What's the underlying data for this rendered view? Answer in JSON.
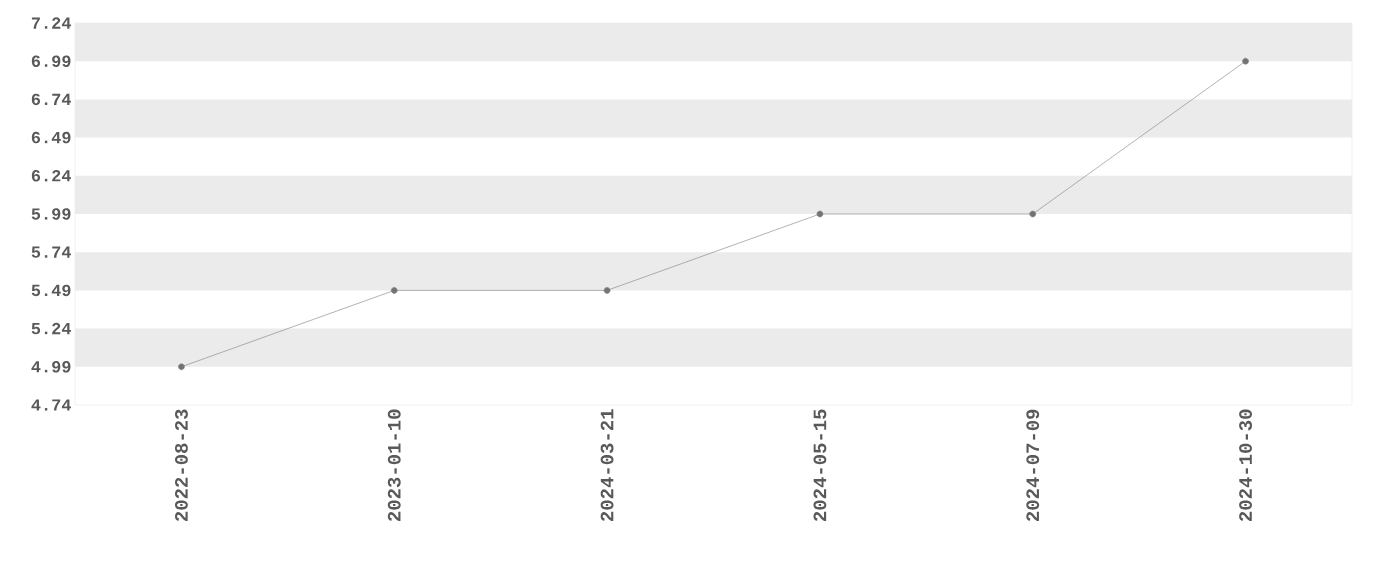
{
  "chart_data": {
    "type": "line",
    "categories": [
      "2022-08-23",
      "2023-01-10",
      "2024-03-21",
      "2024-05-15",
      "2024-07-09",
      "2024-10-30"
    ],
    "series": [
      {
        "color": "#808080",
        "values": [
          4.99,
          5.49,
          5.49,
          5.99,
          5.99,
          6.99
        ]
      }
    ],
    "ylim": [
      4.74,
      7.24
    ],
    "yticks": [
      4.74,
      4.99,
      5.24,
      5.49,
      5.74,
      5.99,
      6.24,
      6.49,
      6.74,
      6.99,
      7.24
    ],
    "bands": [
      {
        "axis": "y",
        "from": 4.99,
        "to": 5.24,
        "color": "#ebebeb"
      },
      {
        "axis": "y",
        "from": 5.49,
        "to": 5.74,
        "color": "#ebebeb"
      },
      {
        "axis": "y",
        "from": 5.99,
        "to": 6.24,
        "color": "#ebebeb"
      },
      {
        "axis": "y",
        "from": 6.49,
        "to": 6.74,
        "color": "#ebebeb"
      },
      {
        "axis": "y",
        "from": 6.99,
        "to": 7.24,
        "color": "#ebebeb"
      }
    ],
    "marker": "circle",
    "line_style": "solid",
    "grid": false
  }
}
